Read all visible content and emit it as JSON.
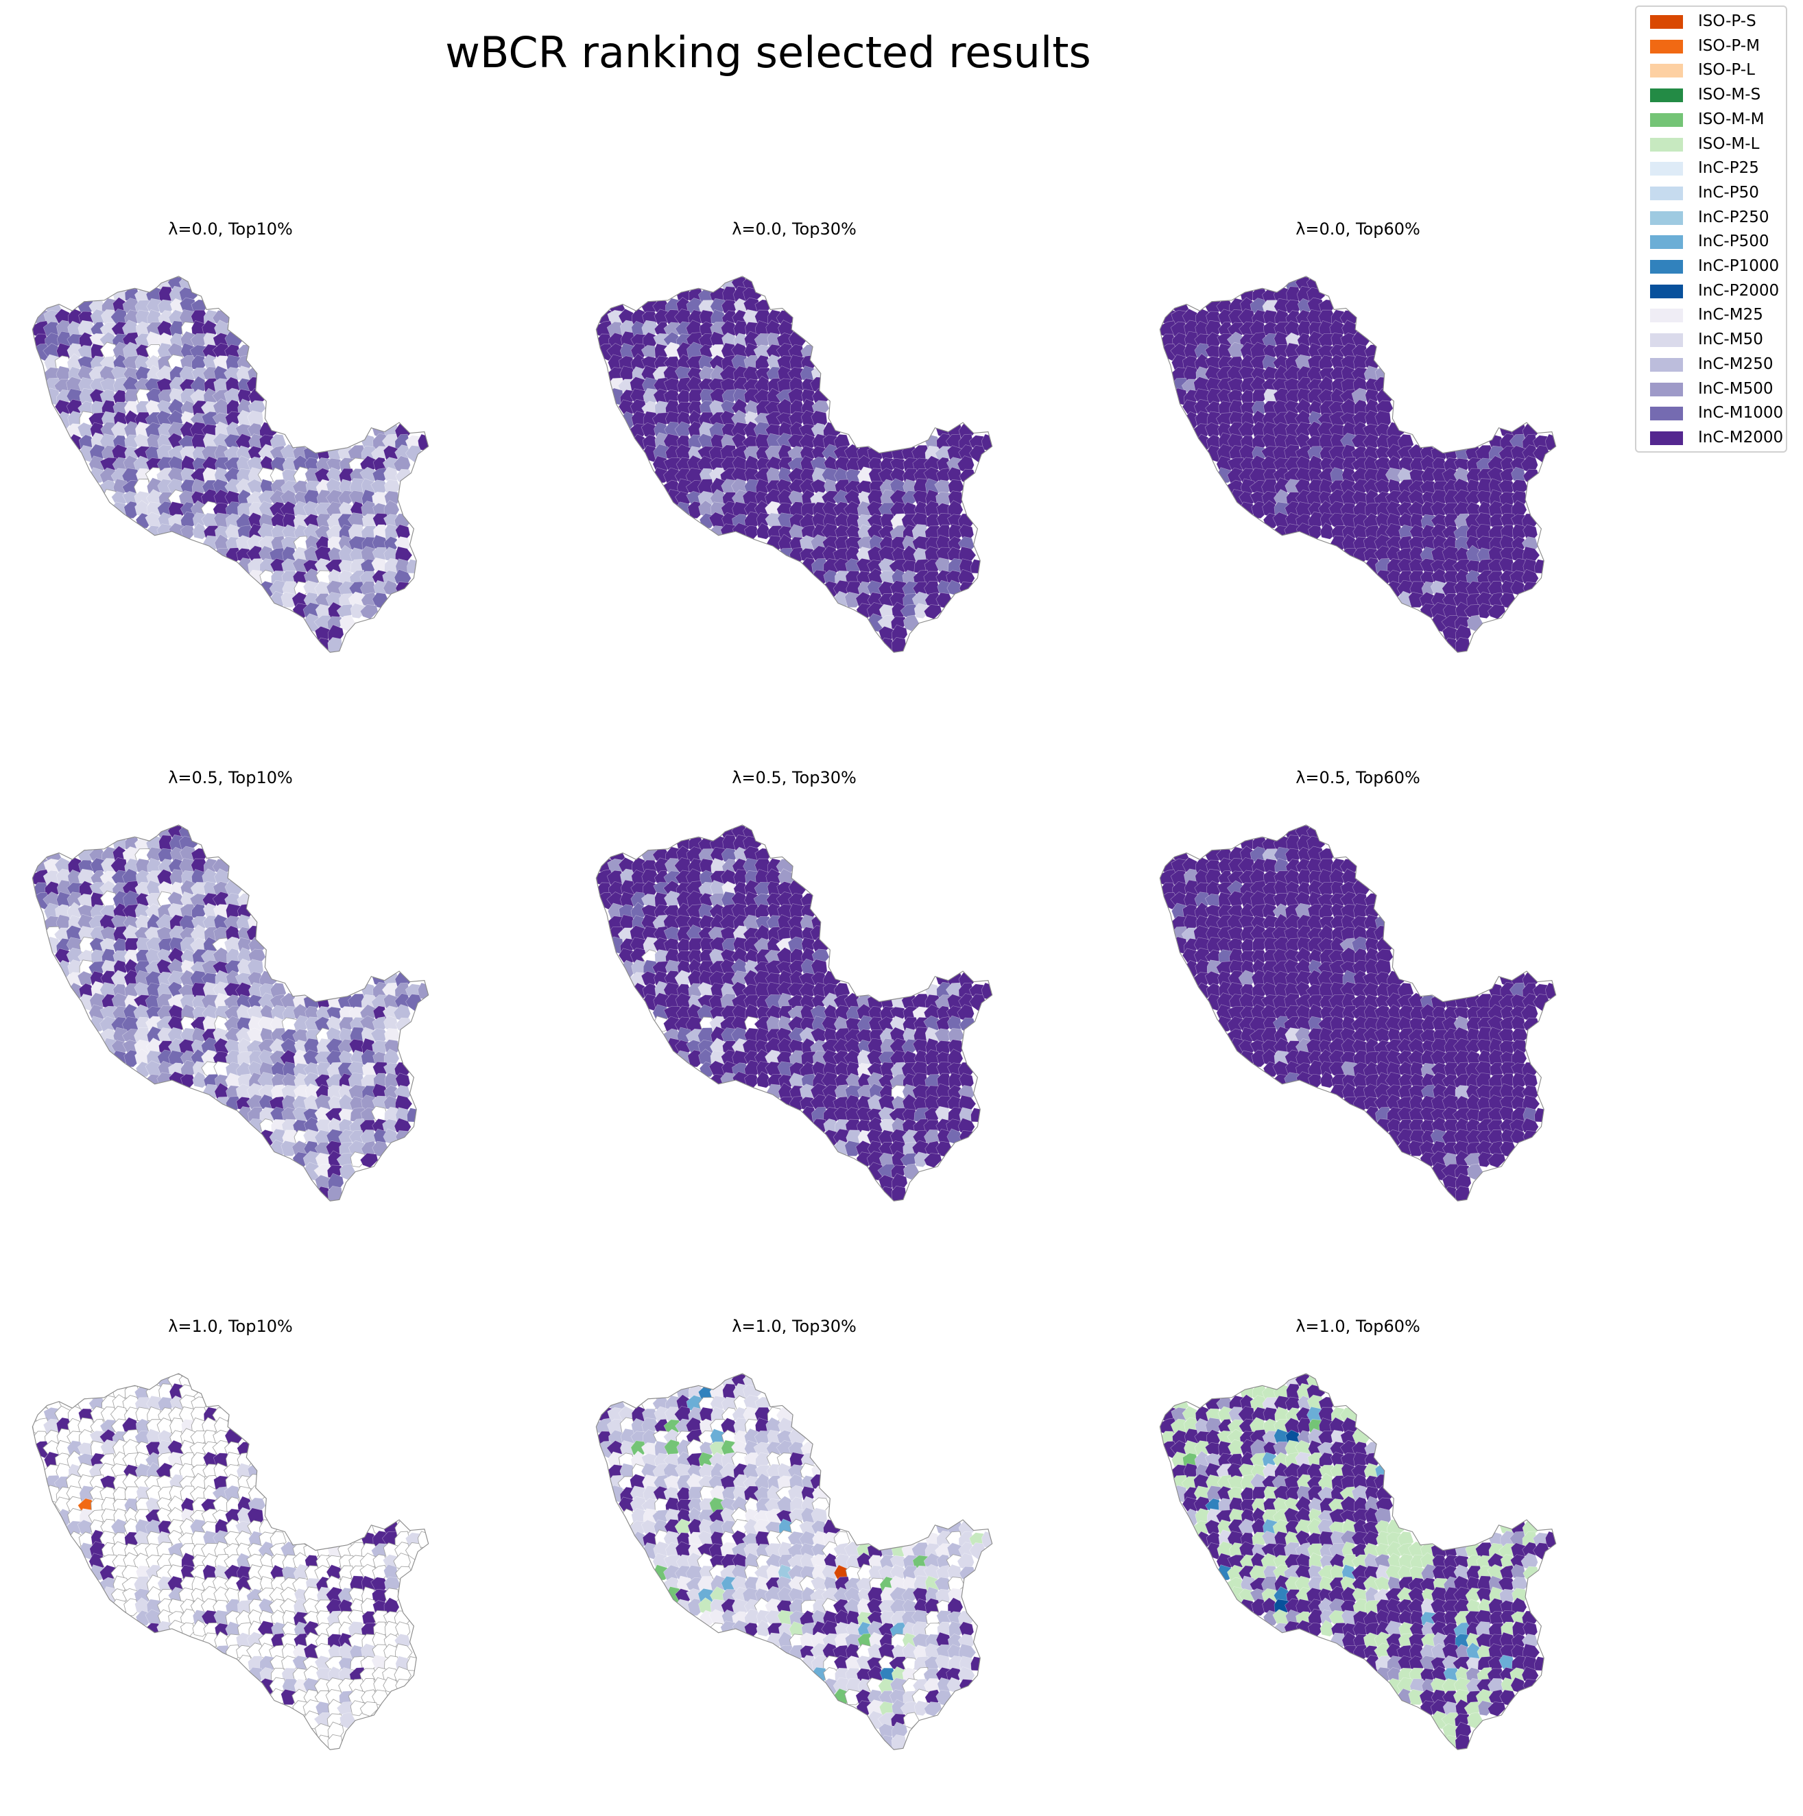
{
  "figure": {
    "title": "wBCR ranking selected results"
  },
  "legend": {
    "entries": [
      {
        "label": "ISO-P-S",
        "color": "#d94801"
      },
      {
        "label": "ISO-P-M",
        "color": "#f16913"
      },
      {
        "label": "ISO-P-L",
        "color": "#fdd0a2"
      },
      {
        "label": "ISO-M-S",
        "color": "#238b45"
      },
      {
        "label": "ISO-M-M",
        "color": "#74c476"
      },
      {
        "label": "ISO-M-L",
        "color": "#c7e9c0"
      },
      {
        "label": "InC-P25",
        "color": "#deebf7"
      },
      {
        "label": "InC-P50",
        "color": "#c6dbef"
      },
      {
        "label": "InC-P250",
        "color": "#9ecae1"
      },
      {
        "label": "InC-P500",
        "color": "#6baed6"
      },
      {
        "label": "InC-P1000",
        "color": "#3182bd"
      },
      {
        "label": "InC-P2000",
        "color": "#08519c"
      },
      {
        "label": "InC-M25",
        "color": "#efedf5"
      },
      {
        "label": "InC-M50",
        "color": "#dadaeb"
      },
      {
        "label": "InC-M250",
        "color": "#bcbddc"
      },
      {
        "label": "InC-M500",
        "color": "#9e9ac8"
      },
      {
        "label": "InC-M1000",
        "color": "#756bb1"
      },
      {
        "label": "InC-M2000",
        "color": "#54278f"
      }
    ]
  },
  "panels": [
    {
      "title": "λ=0.0, Top10%",
      "lambda": 0.0,
      "top_percent": 10,
      "dominant": "InC-M2000",
      "share": {
        "InC-M2000": 0.3,
        "InC-M1000": 0.12,
        "InC-M500": 0.12,
        "InC-M250": 0.14,
        "InC-M50": 0.12,
        "InC-M25": 0.08,
        "unselected": 0.11,
        "ISO-M-S": 0.01
      }
    },
    {
      "title": "λ=0.0, Top30%",
      "lambda": 0.0,
      "top_percent": 30,
      "dominant": "InC-M2000",
      "share": {
        "InC-M2000": 0.62,
        "InC-M1000": 0.08,
        "InC-M500": 0.08,
        "InC-M250": 0.08,
        "InC-M50": 0.06,
        "InC-M25": 0.03,
        "unselected": 0.03,
        "ISO-P-S": 0.01,
        "ISO-M-S": 0.01
      }
    },
    {
      "title": "λ=0.0, Top60%",
      "lambda": 0.0,
      "top_percent": 60,
      "dominant": "InC-M2000",
      "share": {
        "InC-M2000": 0.8,
        "InC-M1000": 0.06,
        "InC-M500": 0.05,
        "InC-M250": 0.04,
        "InC-M50": 0.03,
        "ISO-M-L": 0.01,
        "ISO-M-S": 0.01
      }
    },
    {
      "title": "λ=0.5, Top10%",
      "lambda": 0.5,
      "top_percent": 10,
      "dominant": "InC-M2000",
      "share": {
        "InC-M2000": 0.26,
        "InC-M1000": 0.12,
        "InC-M500": 0.13,
        "InC-M250": 0.15,
        "InC-M50": 0.13,
        "InC-M25": 0.09,
        "unselected": 0.11,
        "ISO-P-S": 0.01
      }
    },
    {
      "title": "λ=0.5, Top30%",
      "lambda": 0.5,
      "top_percent": 30,
      "dominant": "InC-M2000",
      "share": {
        "InC-M2000": 0.62,
        "InC-M1000": 0.08,
        "InC-M500": 0.08,
        "InC-M250": 0.08,
        "InC-M50": 0.06,
        "InC-M25": 0.03,
        "unselected": 0.03,
        "ISO-P-S": 0.01,
        "ISO-M-S": 0.01
      }
    },
    {
      "title": "λ=0.5, Top60%",
      "lambda": 0.5,
      "top_percent": 60,
      "dominant": "InC-M2000",
      "share": {
        "InC-M2000": 0.82,
        "InC-M1000": 0.06,
        "InC-M500": 0.05,
        "InC-M250": 0.03,
        "InC-M50": 0.02,
        "ISO-M-L": 0.01,
        "ISO-M-S": 0.01
      }
    },
    {
      "title": "λ=1.0, Top10%",
      "lambda": 1.0,
      "top_percent": 10,
      "dominant": "unselected",
      "share": {
        "unselected": 0.58,
        "InC-M2000": 0.1,
        "InC-M250": 0.1,
        "InC-M50": 0.12,
        "InC-M25": 0.05,
        "ISO-P-S": 0.02,
        "ISO-P-M": 0.01,
        "ISO-M-M": 0.01,
        "ISO-M-S": 0.01
      }
    },
    {
      "title": "λ=1.0, Top30%",
      "lambda": 1.0,
      "top_percent": 30,
      "dominant": "InC-M2000",
      "share": {
        "InC-M2000": 0.28,
        "InC-M250": 0.18,
        "InC-M50": 0.16,
        "InC-M25": 0.08,
        "unselected": 0.12,
        "ISO-M-L": 0.05,
        "ISO-M-M": 0.03,
        "InC-P500": 0.03,
        "InC-P1000": 0.02,
        "InC-P250": 0.02,
        "ISO-P-S": 0.02,
        "ISO-P-L": 0.01
      }
    },
    {
      "title": "λ=1.0, Top60%",
      "lambda": 1.0,
      "top_percent": 60,
      "dominant": "InC-M2000",
      "share": {
        "InC-M2000": 0.5,
        "ISO-M-L": 0.16,
        "InC-M250": 0.08,
        "InC-M500": 0.06,
        "InC-M50": 0.06,
        "InC-P500": 0.03,
        "InC-P1000": 0.02,
        "InC-P2000": 0.02,
        "ISO-M-S": 0.02,
        "ISO-M-M": 0.02,
        "unselected": 0.03
      }
    }
  ]
}
